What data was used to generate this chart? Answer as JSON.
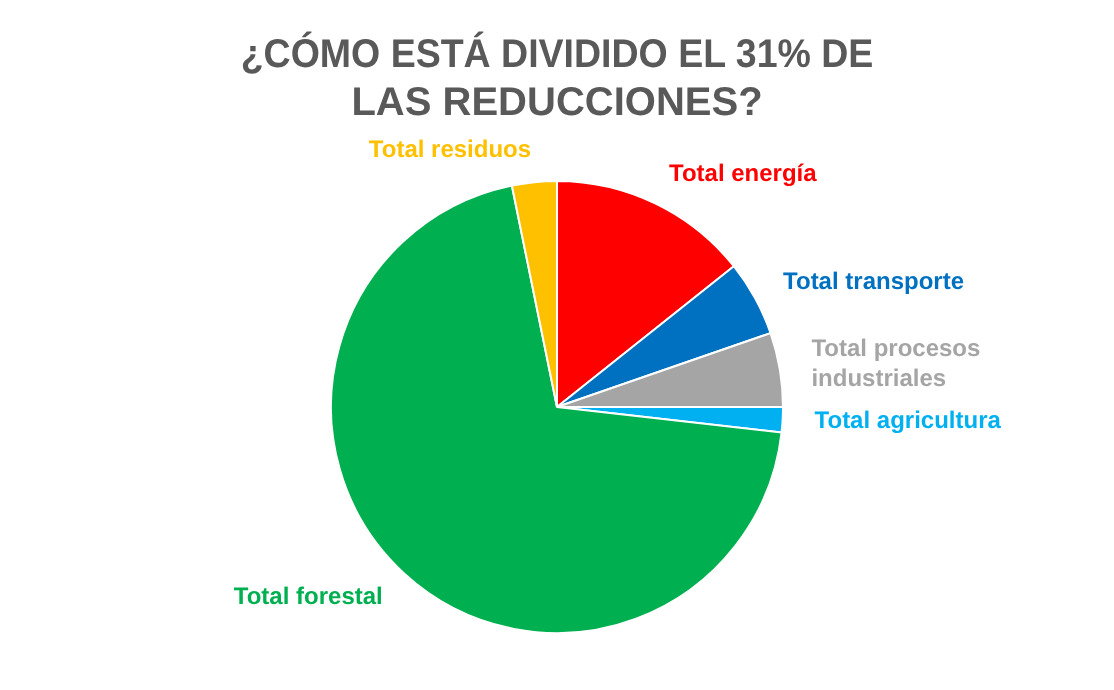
{
  "chart_data": {
    "type": "pie",
    "title": "¿CÓMO ESTÁ DIVIDIDO EL 31% DE LAS REDUCCIONES?",
    "categories": [
      "Total energía",
      "Total transporte",
      "Total procesos industriales",
      "Total agricultura",
      "Total forestal",
      "Total residuos"
    ],
    "values": [
      14.3,
      5.4,
      5.3,
      1.8,
      70.0,
      3.2
    ],
    "colors": [
      "#ff0000",
      "#0070c0",
      "#a5a5a5",
      "#00b0f0",
      "#00b050",
      "#ffc000"
    ],
    "legend": false
  }
}
